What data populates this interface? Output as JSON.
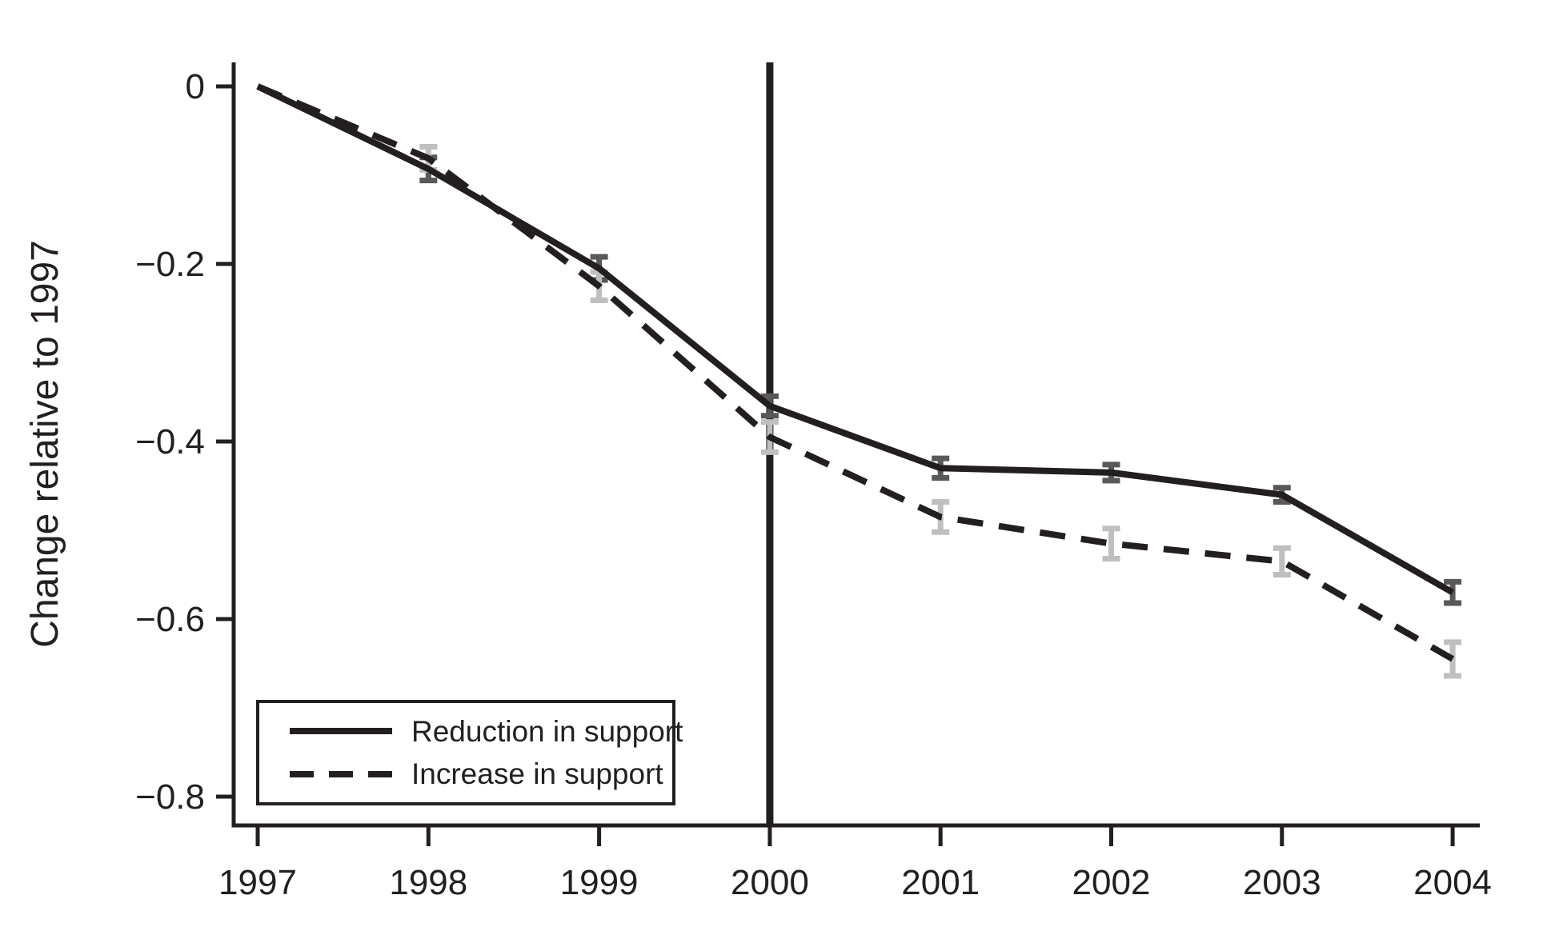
{
  "figure": {
    "background": "#ffffff",
    "ink_color": "#231f20"
  },
  "chart_data": {
    "type": "line",
    "title": "",
    "xlabel": "",
    "ylabel": "Change relative to 1997",
    "x": [
      1997,
      1998,
      1999,
      2000,
      2001,
      2002,
      2003,
      2004
    ],
    "x_tick_labels": [
      "1997",
      "1998",
      "1999",
      "2000",
      "2001",
      "2002",
      "2003",
      "2004"
    ],
    "y_ticks": [
      {
        "value": 0,
        "label": "0"
      },
      {
        "value": -0.2,
        "label": "−0.2"
      },
      {
        "value": -0.4,
        "label": "−0.4"
      },
      {
        "value": -0.6,
        "label": "−0.6"
      },
      {
        "value": -0.8,
        "label": "−0.8"
      }
    ],
    "ylim": [
      -0.83,
      0.03
    ],
    "grid": false,
    "reference_line": {
      "x": 2000,
      "color": "#231f20"
    },
    "series": [
      {
        "name": "Reduction in support",
        "line_style": "solid",
        "color": "#231f20",
        "error_color": "#59595b",
        "values": [
          0,
          -0.093,
          -0.205,
          -0.36,
          -0.43,
          -0.435,
          -0.46,
          -0.57
        ],
        "errors": [
          null,
          0.013,
          0.013,
          0.011,
          0.011,
          0.009,
          0.008,
          0.012
        ]
      },
      {
        "name": "Increase in support",
        "line_style": "dashed",
        "color": "#231f20",
        "error_color": "#bdbfc1",
        "values": [
          0,
          -0.081,
          -0.225,
          -0.395,
          -0.485,
          -0.515,
          -0.535,
          -0.645
        ],
        "errors": [
          null,
          0.013,
          0.016,
          0.017,
          0.017,
          0.017,
          0.015,
          0.019
        ]
      }
    ],
    "legend": {
      "position": "bottom-left",
      "entries": [
        "Reduction in support",
        "Increase in support"
      ]
    }
  }
}
